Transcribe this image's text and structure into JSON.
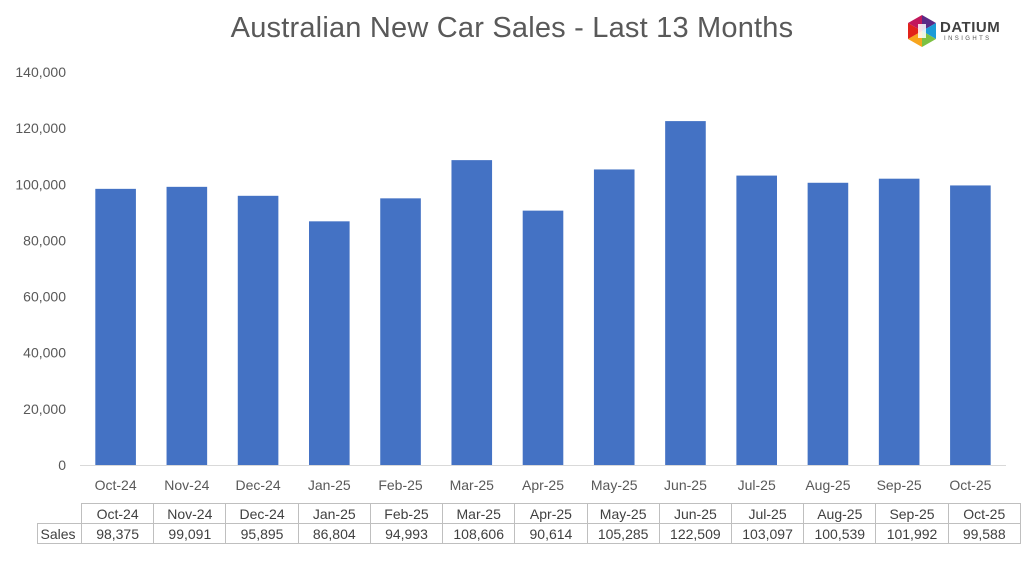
{
  "title": "Australian New Car Sales  - Last 13 Months",
  "logo": {
    "name": "DATIUM",
    "subtitle": "INSIGHTS",
    "colors": [
      "#e2231a",
      "#f7a51e",
      "#7cc142",
      "#1b9bd7",
      "#5b2a86"
    ]
  },
  "chart_data": {
    "type": "bar",
    "title": "Australian New Car Sales  - Last 13 Months",
    "categories": [
      "Oct-24",
      "Nov-24",
      "Dec-24",
      "Jan-25",
      "Feb-25",
      "Mar-25",
      "Apr-25",
      "May-25",
      "Jun-25",
      "Jul-25",
      "Aug-25",
      "Sep-25",
      "Oct-25"
    ],
    "series": [
      {
        "name": "Sales",
        "values": [
          98375,
          99091,
          95895,
          86804,
          94993,
          108606,
          90614,
          105285,
          122509,
          103097,
          100539,
          101992,
          99588
        ],
        "color": "#4472c4"
      }
    ],
    "ylim": [
      0,
      140000
    ],
    "yticks": [
      "0",
      "20,000",
      "40,000",
      "60,000",
      "80,000",
      "100,000",
      "120,000",
      "140,000"
    ],
    "grid": false,
    "legend": "none"
  },
  "table": {
    "row_label": "Sales",
    "cells": [
      "98,375",
      "99,091",
      "95,895",
      "86,804",
      "94,993",
      "108,606",
      "90,614",
      "105,285",
      "122,509",
      "103,097",
      "100,539",
      "101,992",
      "99,588"
    ]
  }
}
